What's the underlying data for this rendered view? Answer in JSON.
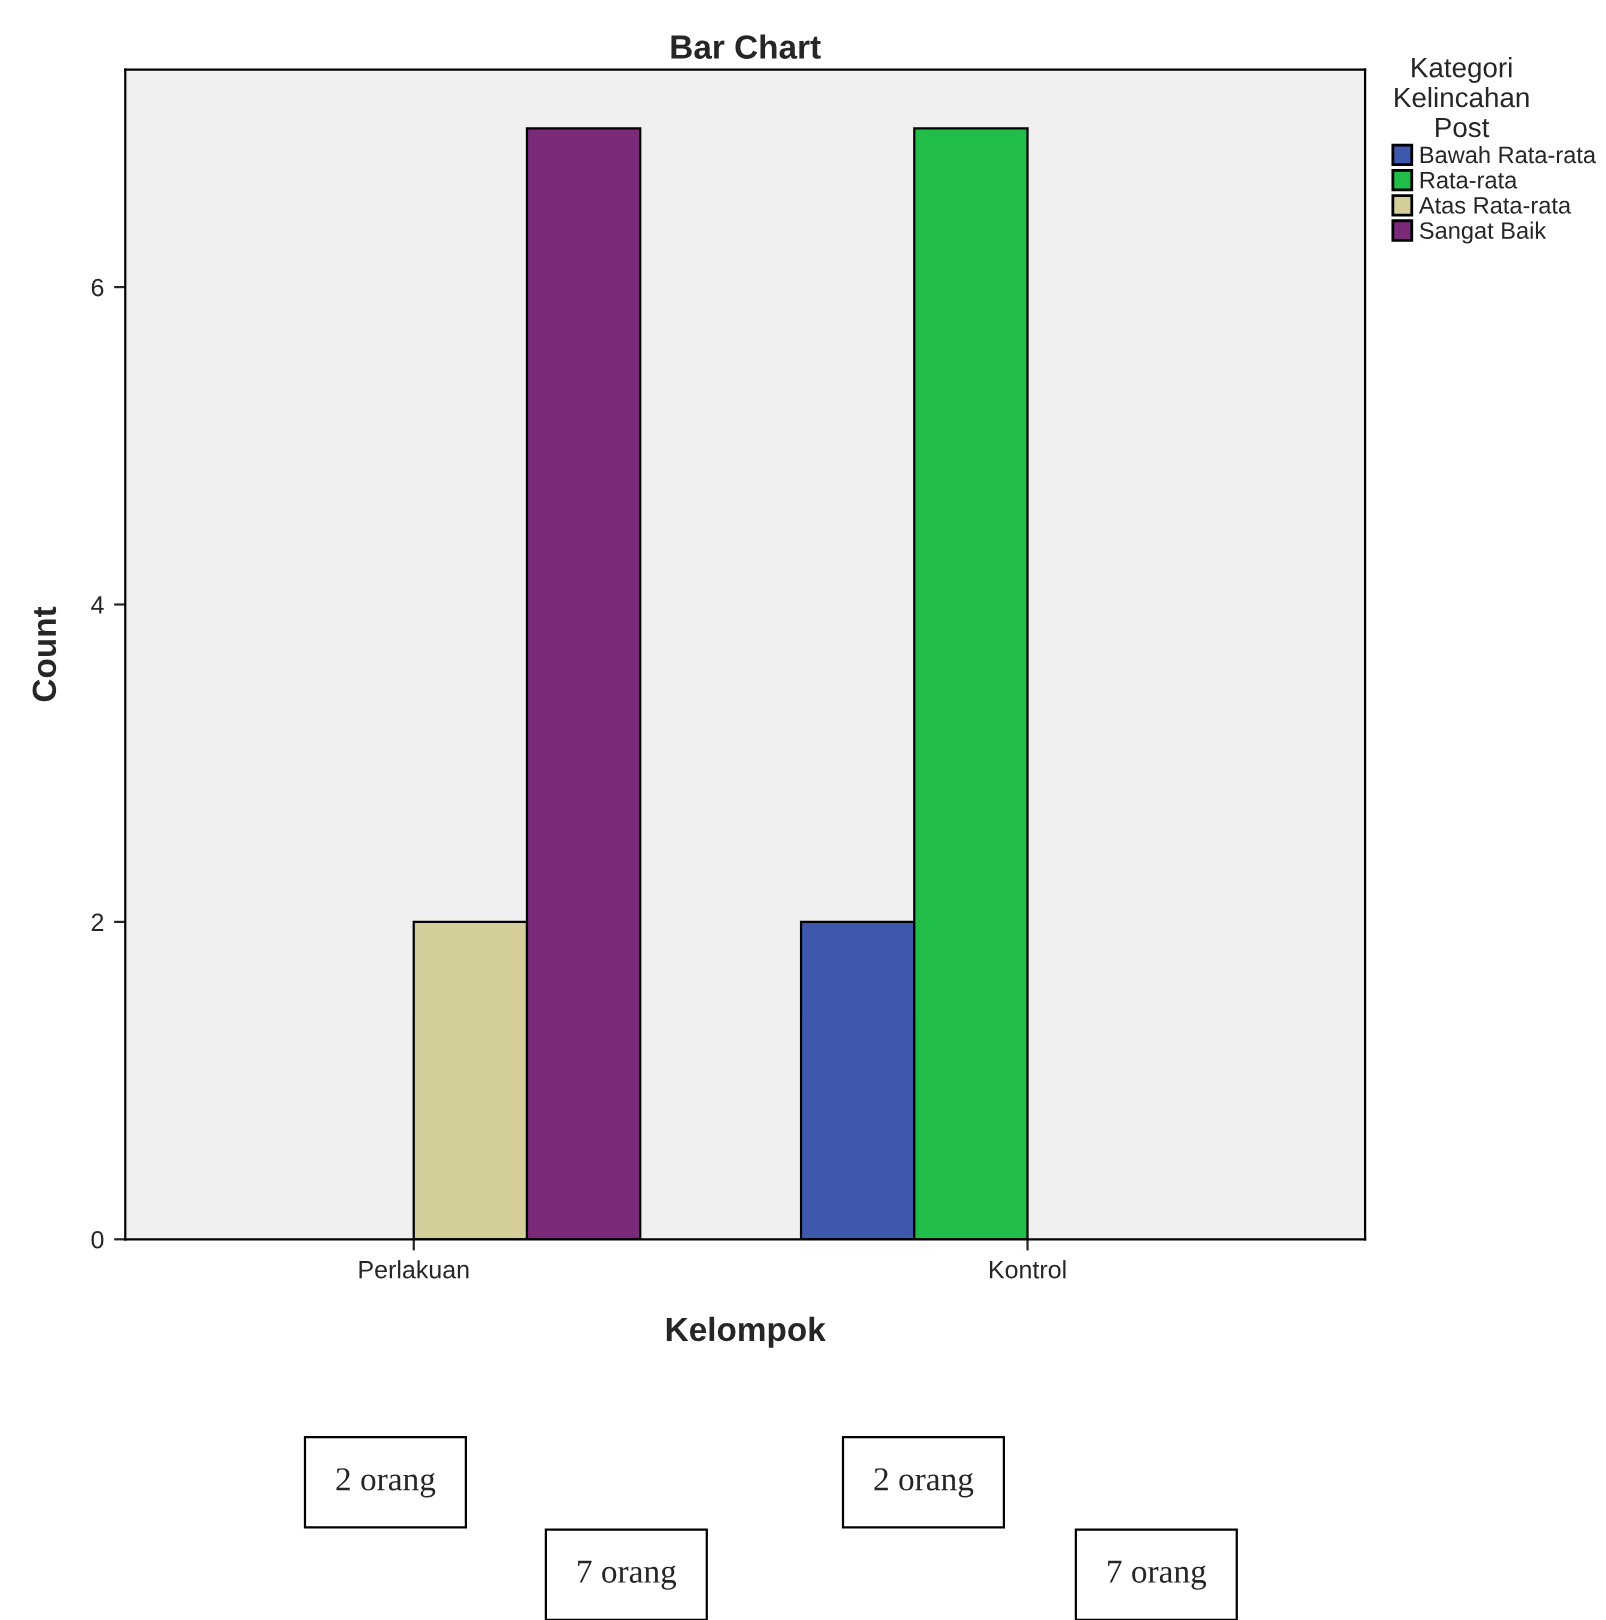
{
  "chart_data": {
    "type": "bar",
    "title": "Bar Chart",
    "xlabel": "Kelompok",
    "ylabel": "Count",
    "legend_title": "Kategori\nKelincahan\nPost",
    "categories": [
      "Perlakuan",
      "Kontrol"
    ],
    "series": [
      {
        "name": "Bawah Rata-rata",
        "color": "#3e58ac",
        "values": [
          null,
          2
        ]
      },
      {
        "name": "Rata-rata",
        "color": "#20be48",
        "values": [
          null,
          7
        ]
      },
      {
        "name": "Atas Rata-rata",
        "color": "#d4cf9a",
        "values": [
          2,
          null
        ]
      },
      {
        "name": "Sangat Baik",
        "color": "#7b2a7a",
        "values": [
          7,
          null
        ]
      }
    ],
    "ylim": [
      0,
      7.37
    ],
    "yticks": [
      0,
      2,
      4,
      6
    ],
    "legend": "top right",
    "annotations": [
      "2 orang",
      "7 orang",
      "2 orang",
      "7 orang"
    ]
  }
}
